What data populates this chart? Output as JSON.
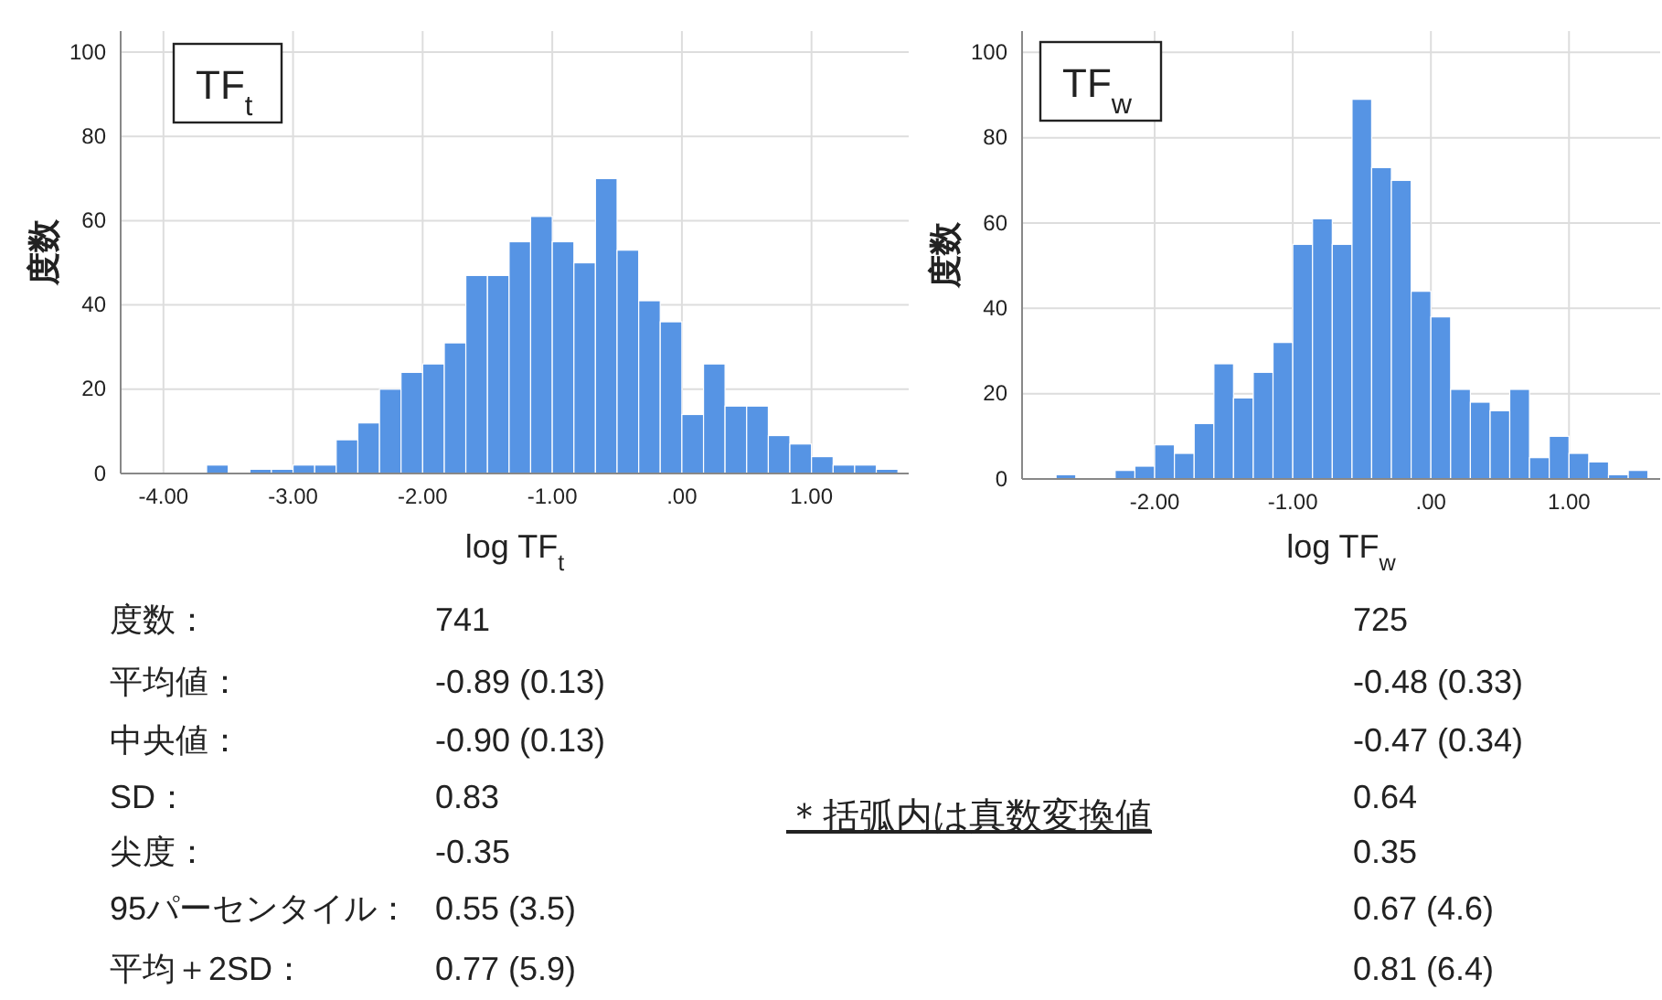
{
  "chart_data": [
    {
      "type": "histogram",
      "title": "TF$_{t}$",
      "xlabel": "log TF$_{t}$",
      "ylabel": "度数",
      "color": "#5694e4",
      "grid": true,
      "bins": [
        -3.667,
        -3.5,
        -3.333,
        -3.167,
        -3,
        -2.833,
        -2.667,
        -2.5,
        -2.333,
        -2.167,
        -2,
        -1.833,
        -1.667,
        -1.5,
        -1.333,
        -1.167,
        -1,
        -0.833,
        -0.667,
        -0.5,
        -0.333,
        -0.167,
        0,
        0.167,
        0.333,
        0.5,
        0.667,
        0.833,
        1,
        1.167,
        1.333,
        1.5,
        1.667
      ],
      "values": [
        2,
        0,
        1,
        1,
        2,
        2,
        8,
        12,
        20,
        24,
        26,
        31,
        47,
        47,
        55,
        61,
        55,
        50,
        70,
        53,
        41,
        36,
        14,
        26,
        16,
        16,
        9,
        7,
        4,
        2,
        2,
        1
      ],
      "xlim": [
        -4.33,
        1.75
      ],
      "xticks": [
        {
          "value": -4,
          "label": "-4.00"
        },
        {
          "value": -3,
          "label": "-3.00"
        },
        {
          "value": -2,
          "label": "-2.00"
        },
        {
          "value": -1,
          "label": "-1.00"
        },
        {
          "value": 0,
          "label": ".00"
        },
        {
          "value": 1,
          "label": "1.00"
        }
      ],
      "ylim": [
        0,
        105
      ],
      "yticks": [
        0,
        20,
        40,
        60,
        80,
        100
      ],
      "annotations": [
        "741",
        "-0.89 (0.13)",
        "-0.90 (0.13)",
        "0.83",
        "-0.35",
        "0.55 (3.5)",
        "0.77 (5.9)"
      ]
    },
    {
      "type": "histogram",
      "title": "TF$_{w}$",
      "xlabel": "log TF$_{w}$",
      "ylabel": "度数",
      "color": "#5694e4",
      "grid": true,
      "bins": [
        -2.714,
        -2.571,
        -2.429,
        -2.286,
        -2.143,
        -2,
        -1.857,
        -1.714,
        -1.571,
        -1.429,
        -1.286,
        -1.143,
        -1,
        -0.857,
        -0.714,
        -0.571,
        -0.429,
        -0.286,
        -0.143,
        0,
        0.143,
        0.286,
        0.429,
        0.571,
        0.714,
        0.857,
        1,
        1.143,
        1.286,
        1.429,
        1.571
      ],
      "values": [
        1,
        0,
        0,
        2,
        3,
        8,
        6,
        13,
        27,
        19,
        25,
        32,
        55,
        61,
        55,
        89,
        73,
        70,
        44,
        38,
        21,
        18,
        16,
        21,
        5,
        10,
        6,
        4,
        1,
        2
      ],
      "xlim": [
        -2.96,
        1.66
      ],
      "xticks": [
        {
          "value": -2,
          "label": "-2.00"
        },
        {
          "value": -1,
          "label": "-1.00"
        },
        {
          "value": 0,
          "label": ".00"
        },
        {
          "value": 1,
          "label": "1.00"
        }
      ],
      "ylim": [
        0,
        105
      ],
      "yticks": [
        0,
        20,
        40,
        60,
        80,
        100
      ],
      "annotations": [
        "725",
        "-0.48 (0.33)",
        "-0.47 (0.34)",
        "0.64",
        "0.35",
        "0.67 (4.6)",
        "0.81 (6.4)"
      ]
    },
    {
      "type": "other",
      "annotations": [
        "度数：",
        "平均値：",
        "中央値：",
        "SD：",
        "尖度：",
        "95パーセンタイル：",
        "平均＋2SD：",
        "＊括弧内は真数変換値"
      ]
    }
  ]
}
